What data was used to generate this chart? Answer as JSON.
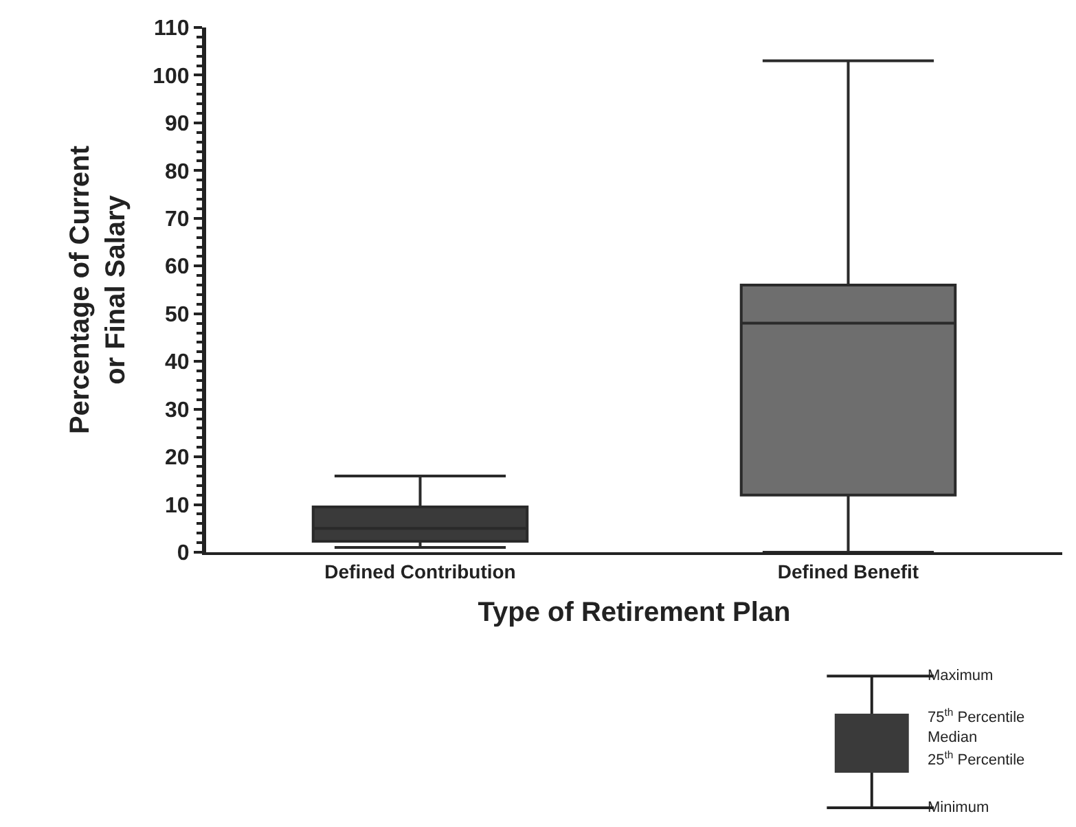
{
  "chart_data": {
    "type": "box",
    "xlabel": "Type of Retirement Plan",
    "ylabel": "Percentage of Current\nor Final Salary",
    "categories": [
      "Defined Contribution",
      "Defined Benefit"
    ],
    "colors": [
      "#3a3a3a",
      "#6e6e6e"
    ],
    "boxes": [
      {
        "low": 1,
        "q1": 2.3,
        "median": 5,
        "q3": 9.5,
        "high": 16
      },
      {
        "low": 0,
        "q1": 12,
        "median": 48,
        "q3": 56,
        "high": 103
      }
    ],
    "ylim": [
      0,
      110
    ],
    "yticks": [
      0,
      10,
      20,
      30,
      40,
      50,
      60,
      70,
      80,
      90,
      100,
      110
    ],
    "annotations": [
      "Maximum",
      "75$^{th}$ Percentile",
      "Median",
      "25$^{th}$ Percentile",
      "Minimum"
    ]
  }
}
